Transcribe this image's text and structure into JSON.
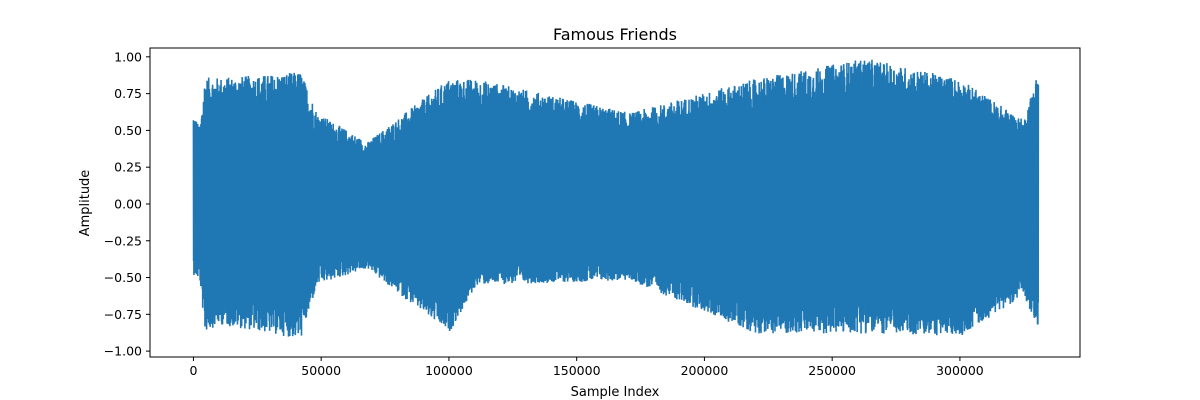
{
  "chart_data": {
    "type": "line",
    "title": "Famous Friends",
    "xlabel": "Sample Index",
    "ylabel": "Amplitude",
    "xlim": [
      -17000,
      347000
    ],
    "ylim": [
      -1.04,
      1.06
    ],
    "x_ticks": [
      0,
      50000,
      100000,
      150000,
      200000,
      250000,
      300000
    ],
    "x_tick_labels": [
      "0",
      "50000",
      "100000",
      "150000",
      "200000",
      "250000",
      "300000"
    ],
    "y_ticks": [
      1.0,
      0.75,
      0.5,
      0.25,
      0.0,
      -0.25,
      -0.5,
      -0.75,
      -1.0
    ],
    "y_tick_labels": [
      "1.00",
      "0.75",
      "0.50",
      "0.25",
      "0.00",
      "−0.25",
      "−0.50",
      "−0.75",
      "−1.00"
    ],
    "grid": false,
    "series": [
      {
        "color": "#1f77b4",
        "x_range": [
          0,
          330700
        ],
        "description_of_shape": "dense audio waveform",
        "envelope": [
          {
            "x": 0,
            "upper": 0.63,
            "lower": -0.48
          },
          {
            "x": 2500,
            "upper": 0.52,
            "lower": -0.52
          },
          {
            "x": 4500,
            "upper": 0.86,
            "lower": -0.87
          },
          {
            "x": 10000,
            "upper": 0.86,
            "lower": -0.82
          },
          {
            "x": 30000,
            "upper": 0.88,
            "lower": -0.88
          },
          {
            "x": 42000,
            "upper": 0.9,
            "lower": -0.92
          },
          {
            "x": 48500,
            "upper": 0.62,
            "lower": -0.55
          },
          {
            "x": 68000,
            "upper": 0.42,
            "lower": -0.44
          },
          {
            "x": 100000,
            "upper": 0.85,
            "lower": -0.88
          },
          {
            "x": 111000,
            "upper": 0.85,
            "lower": -0.55
          },
          {
            "x": 171000,
            "upper": 0.62,
            "lower": -0.52
          },
          {
            "x": 220000,
            "upper": 0.85,
            "lower": -0.88
          },
          {
            "x": 263000,
            "upper": 0.99,
            "lower": -0.88
          },
          {
            "x": 300000,
            "upper": 0.85,
            "lower": -0.9
          },
          {
            "x": 325000,
            "upper": 0.57,
            "lower": -0.62
          },
          {
            "x": 330700,
            "upper": 0.92,
            "lower": -0.85
          }
        ]
      }
    ]
  }
}
